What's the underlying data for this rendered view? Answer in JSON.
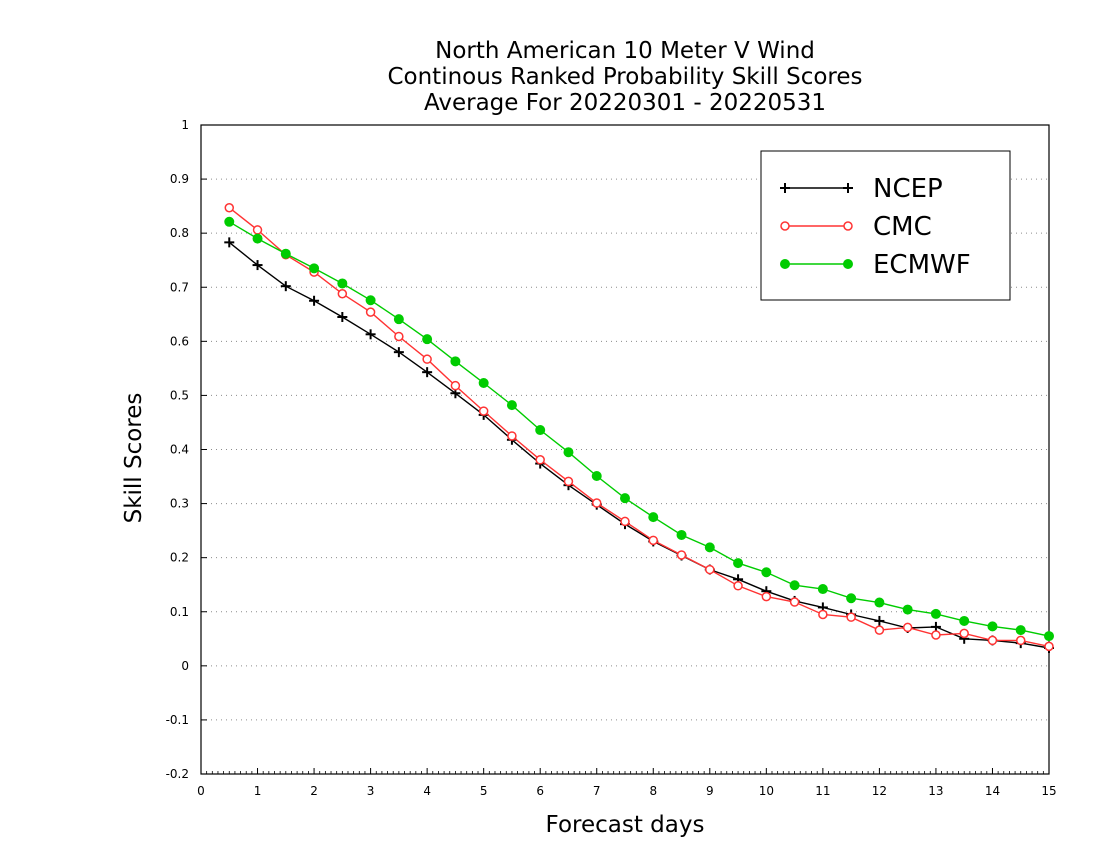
{
  "chart_data": {
    "type": "line",
    "title": [
      "North American 10 Meter V Wind",
      "Continous Ranked Probability Skill Scores",
      "Average For 20220301 - 20220531"
    ],
    "xlabel": "Forecast days",
    "ylabel": "Skill Scores",
    "xlim": [
      0,
      15
    ],
    "ylim": [
      -0.2,
      1
    ],
    "xticks": [
      0,
      1,
      2,
      3,
      4,
      5,
      6,
      7,
      8,
      9,
      10,
      11,
      12,
      13,
      14,
      15
    ],
    "yticks": [
      -0.2,
      -0.1,
      0,
      0.1,
      0.2,
      0.3,
      0.4,
      0.5,
      0.6,
      0.7,
      0.8,
      0.9,
      1
    ],
    "ytick_labels": [
      "-0.2",
      "-0.1",
      "0",
      "0.1",
      "0.2",
      "0.3",
      "0.4",
      "0.5",
      "0.6",
      "0.7",
      "0.8",
      "0.9",
      "1"
    ],
    "grid": "horizontal-dotted",
    "legend_position": "top-right",
    "x": [
      0.5,
      1,
      1.5,
      2,
      2.5,
      3,
      3.5,
      4,
      4.5,
      5,
      5.5,
      6,
      6.5,
      7,
      7.5,
      8,
      8.5,
      9,
      9.5,
      10,
      10.5,
      11,
      11.5,
      12,
      12.5,
      13,
      13.5,
      14,
      14.5,
      15
    ],
    "series": [
      {
        "name": "NCEP",
        "color": "#000000",
        "marker": "plus",
        "values": [
          0.783,
          0.741,
          0.702,
          0.675,
          0.645,
          0.613,
          0.58,
          0.543,
          0.504,
          0.464,
          0.418,
          0.374,
          0.334,
          0.298,
          0.262,
          0.23,
          0.204,
          0.178,
          0.16,
          0.138,
          0.12,
          0.108,
          0.095,
          0.083,
          0.07,
          0.072,
          0.05,
          0.047,
          0.042,
          0.033
        ]
      },
      {
        "name": "CMC",
        "color": "#ff3333",
        "marker": "open-circle",
        "values": [
          0.847,
          0.806,
          0.76,
          0.728,
          0.688,
          0.654,
          0.609,
          0.567,
          0.518,
          0.471,
          0.425,
          0.381,
          0.341,
          0.301,
          0.267,
          0.232,
          0.205,
          0.178,
          0.148,
          0.128,
          0.118,
          0.095,
          0.09,
          0.066,
          0.071,
          0.057,
          0.06,
          0.047,
          0.047,
          0.036
        ]
      },
      {
        "name": "ECMWF",
        "color": "#00cc00",
        "marker": "filled-circle",
        "values": [
          0.821,
          0.79,
          0.762,
          0.735,
          0.707,
          0.676,
          0.641,
          0.604,
          0.563,
          0.523,
          0.482,
          0.436,
          0.395,
          0.351,
          0.31,
          0.275,
          0.242,
          0.219,
          0.19,
          0.173,
          0.149,
          0.142,
          0.125,
          0.117,
          0.104,
          0.096,
          0.083,
          0.073,
          0.066,
          0.055
        ]
      }
    ]
  }
}
